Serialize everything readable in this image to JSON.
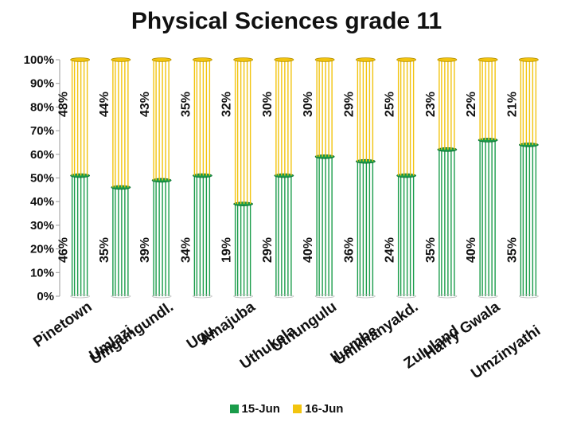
{
  "chart_data": {
    "type": "bar",
    "stacked": true,
    "title": "Physical Sciences grade 11",
    "xlabel": "",
    "ylabel": "",
    "ylim": [
      0,
      100
    ],
    "yticks": [
      "0%",
      "10%",
      "20%",
      "30%",
      "40%",
      "50%",
      "60%",
      "70%",
      "80%",
      "90%",
      "100%"
    ],
    "categories": [
      "Pinetown",
      "Umlazi",
      "Umgungundl.",
      "Ugu",
      "Amajuba",
      "Uthukela",
      "Uthungulu",
      "ILembe",
      "Umkhanyakd.",
      "Zululand",
      "Harry Gwala",
      "Umzinyathi"
    ],
    "series": [
      {
        "name": "15-Jun",
        "color": "#1a9c4a",
        "values": [
          51,
          46,
          49,
          51,
          39,
          51,
          59,
          57,
          51,
          62,
          66,
          64
        ],
        "labels": [
          "46%",
          "35%",
          "39%",
          "34%",
          "19%",
          "29%",
          "40%",
          "36%",
          "24%",
          "35%",
          "40%",
          "35%"
        ]
      },
      {
        "name": "16-Jun",
        "color": "#f2c40f",
        "values": [
          49,
          54,
          51,
          49,
          61,
          49,
          41,
          43,
          49,
          38,
          34,
          36
        ],
        "labels": [
          "48%",
          "44%",
          "43%",
          "35%",
          "32%",
          "30%",
          "30%",
          "29%",
          "25%",
          "23%",
          "22%",
          "21%"
        ]
      }
    ],
    "legend_position": "bottom"
  }
}
